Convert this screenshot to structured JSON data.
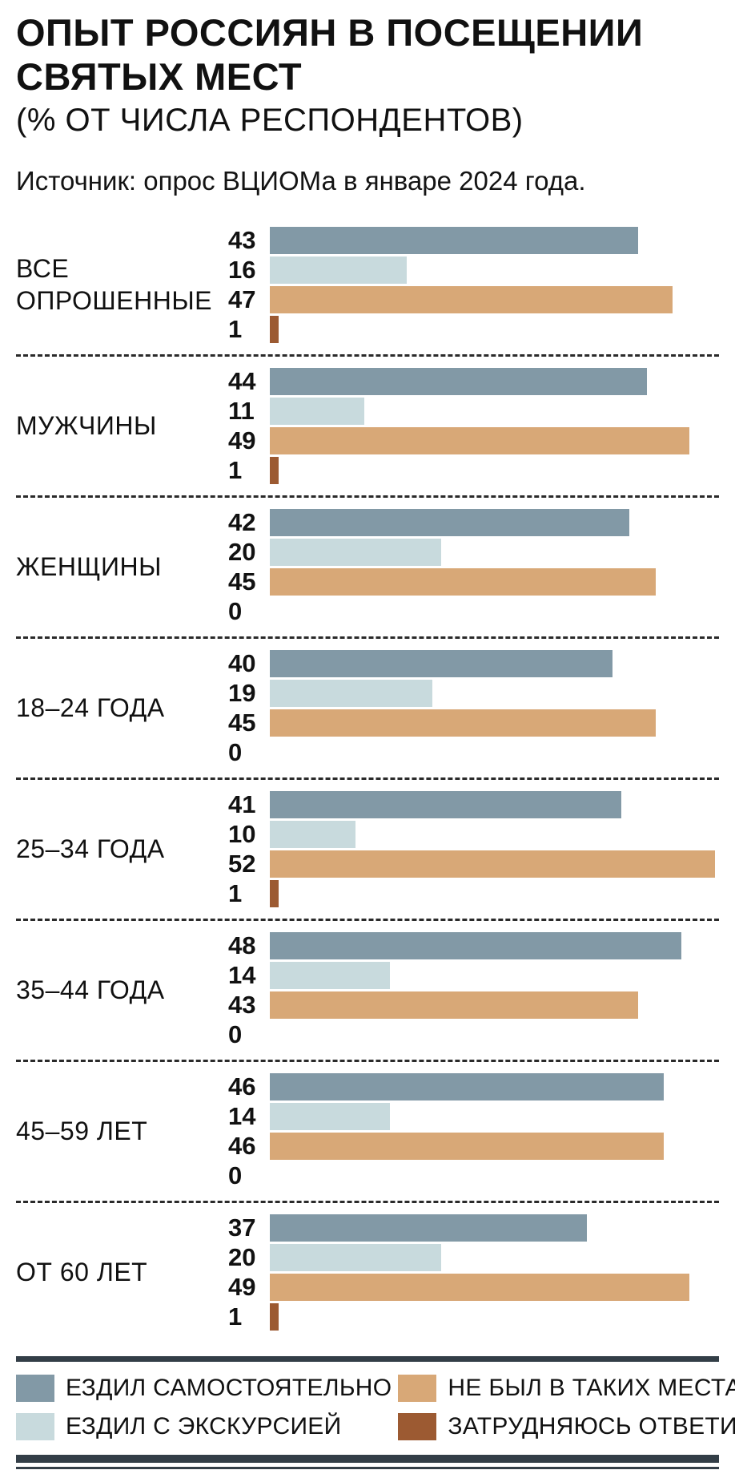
{
  "header": {
    "title_line1": "ОПЫТ РОССИЯН В ПОСЕЩЕНИИ",
    "title_line2": "СВЯТЫХ МЕСТ",
    "subtitle": "(% ОТ ЧИСЛА РЕСПОНДЕНТОВ)",
    "source": "Источник: опрос ВЦИОМа в январе 2024 года."
  },
  "colors": {
    "self_travel": "#8299a6",
    "excursion": "#c8dadd",
    "never_been": "#d8a877",
    "hard_to_answer": "#9c5a32",
    "rule": "#333e47",
    "dash": "#2a2a2a",
    "text": "#111111",
    "background": "#ffffff"
  },
  "chart_data": {
    "type": "bar",
    "orientation": "horizontal",
    "title": "ОПЫТ РОССИЯН В ПОСЕЩЕНИИ СВЯТЫХ МЕСТ",
    "subtitle": "(% ОТ ЧИСЛА РЕСПОНДЕНТОВ)",
    "source": "Источник: опрос ВЦИОМа в январе 2024 года.",
    "unit": "%",
    "xlabel": "",
    "ylabel": "",
    "xlim": [
      0,
      55
    ],
    "grid": false,
    "legend_position": "bottom",
    "categories": [
      "ВСЕ ОПРОШЕННЫЕ",
      "МУЖЧИНЫ",
      "ЖЕНЩИНЫ",
      "18–24 ГОДА",
      "25–34 ГОДА",
      "35–44 ГОДА",
      "45–59 ЛЕТ",
      "ОТ 60 ЛЕТ"
    ],
    "series": [
      {
        "name": "ЕЗДИЛ САМОСТОЯТЕЛЬНО",
        "color": "#8299a6",
        "values": [
          43,
          44,
          42,
          40,
          41,
          48,
          46,
          37
        ]
      },
      {
        "name": "ЕЗДИЛ С ЭКСКУРСИЕЙ",
        "color": "#c8dadd",
        "values": [
          16,
          11,
          20,
          19,
          10,
          14,
          14,
          20
        ]
      },
      {
        "name": "НЕ БЫЛ В ТАКИХ МЕСТАХ",
        "color": "#d8a877",
        "values": [
          47,
          49,
          45,
          45,
          52,
          43,
          46,
          49
        ]
      },
      {
        "name": "ЗАТРУДНЯЮСЬ ОТВЕТИТЬ",
        "color": "#9c5a32",
        "values": [
          1,
          1,
          0,
          0,
          1,
          0,
          0,
          1
        ]
      }
    ]
  },
  "legend": {
    "items": [
      {
        "label": "ЕЗДИЛ САМОСТОЯТЕЛЬНО",
        "color": "#8299a6"
      },
      {
        "label": "НЕ БЫЛ В ТАКИХ МЕСТАХ",
        "color": "#d8a877"
      },
      {
        "label": "ЕЗДИЛ С ЭКСКУРСИЕЙ",
        "color": "#c8dadd"
      },
      {
        "label": "ЗАТРУДНЯЮСЬ ОТВЕТИТЬ",
        "color": "#9c5a32"
      }
    ]
  }
}
